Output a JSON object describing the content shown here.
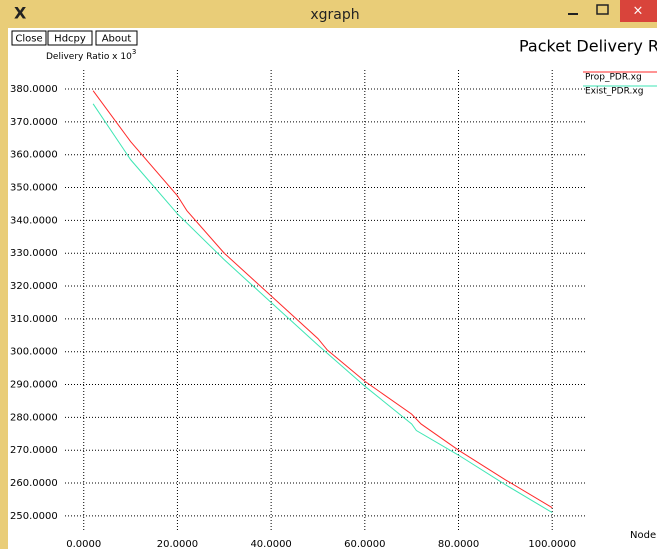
{
  "window": {
    "title": "xgraph"
  },
  "buttons": [
    "Close",
    "Hdcpy",
    "About"
  ],
  "chart_data": {
    "type": "line",
    "title": "Packet Delivery Ratio",
    "y_label": "Delivery Ratio x 10",
    "y_label_exponent": "3",
    "x_label": "Node",
    "xlim": [
      -4,
      107
    ],
    "ylim": [
      245.7,
      385.8
    ],
    "xticks": [
      {
        "value": 0,
        "label": "0.0000"
      },
      {
        "value": 20,
        "label": "20.0000"
      },
      {
        "value": 40,
        "label": "40.0000"
      },
      {
        "value": 60,
        "label": "60.0000"
      },
      {
        "value": 80,
        "label": "80.0000"
      },
      {
        "value": 100,
        "label": "100.0000"
      }
    ],
    "yticks": [
      {
        "value": 250,
        "label": "250.0000"
      },
      {
        "value": 260,
        "label": "260.0000"
      },
      {
        "value": 270,
        "label": "270.0000"
      },
      {
        "value": 280,
        "label": "280.0000"
      },
      {
        "value": 290,
        "label": "290.0000"
      },
      {
        "value": 300,
        "label": "300.0000"
      },
      {
        "value": 310,
        "label": "310.0000"
      },
      {
        "value": 320,
        "label": "320.0000"
      },
      {
        "value": 330,
        "label": "330.0000"
      },
      {
        "value": 340,
        "label": "340.0000"
      },
      {
        "value": 350,
        "label": "350.0000"
      },
      {
        "value": 360,
        "label": "360.0000"
      },
      {
        "value": 370,
        "label": "370.0000"
      },
      {
        "value": 380,
        "label": "380.0000"
      }
    ],
    "grid": true,
    "legend": "top-right",
    "series": [
      {
        "name": "Prop_PDR.xg",
        "color": "#ff2a2a",
        "x": [
          2,
          10,
          20,
          22,
          30,
          40,
          50,
          52,
          60,
          70,
          72,
          80,
          90,
          100
        ],
        "values": [
          379.5,
          364,
          347.5,
          343,
          330,
          317,
          304,
          300.5,
          291,
          281,
          278,
          270,
          261,
          252.5
        ]
      },
      {
        "name": "Exist_PDR.xg",
        "color": "#3ee6b4",
        "x": [
          2,
          10,
          20,
          30,
          40,
          50,
          60,
          70,
          71,
          80,
          90,
          100
        ],
        "values": [
          375.5,
          358.5,
          342,
          328,
          315,
          302,
          289.5,
          278,
          276,
          268.5,
          259.5,
          251
        ]
      }
    ]
  }
}
